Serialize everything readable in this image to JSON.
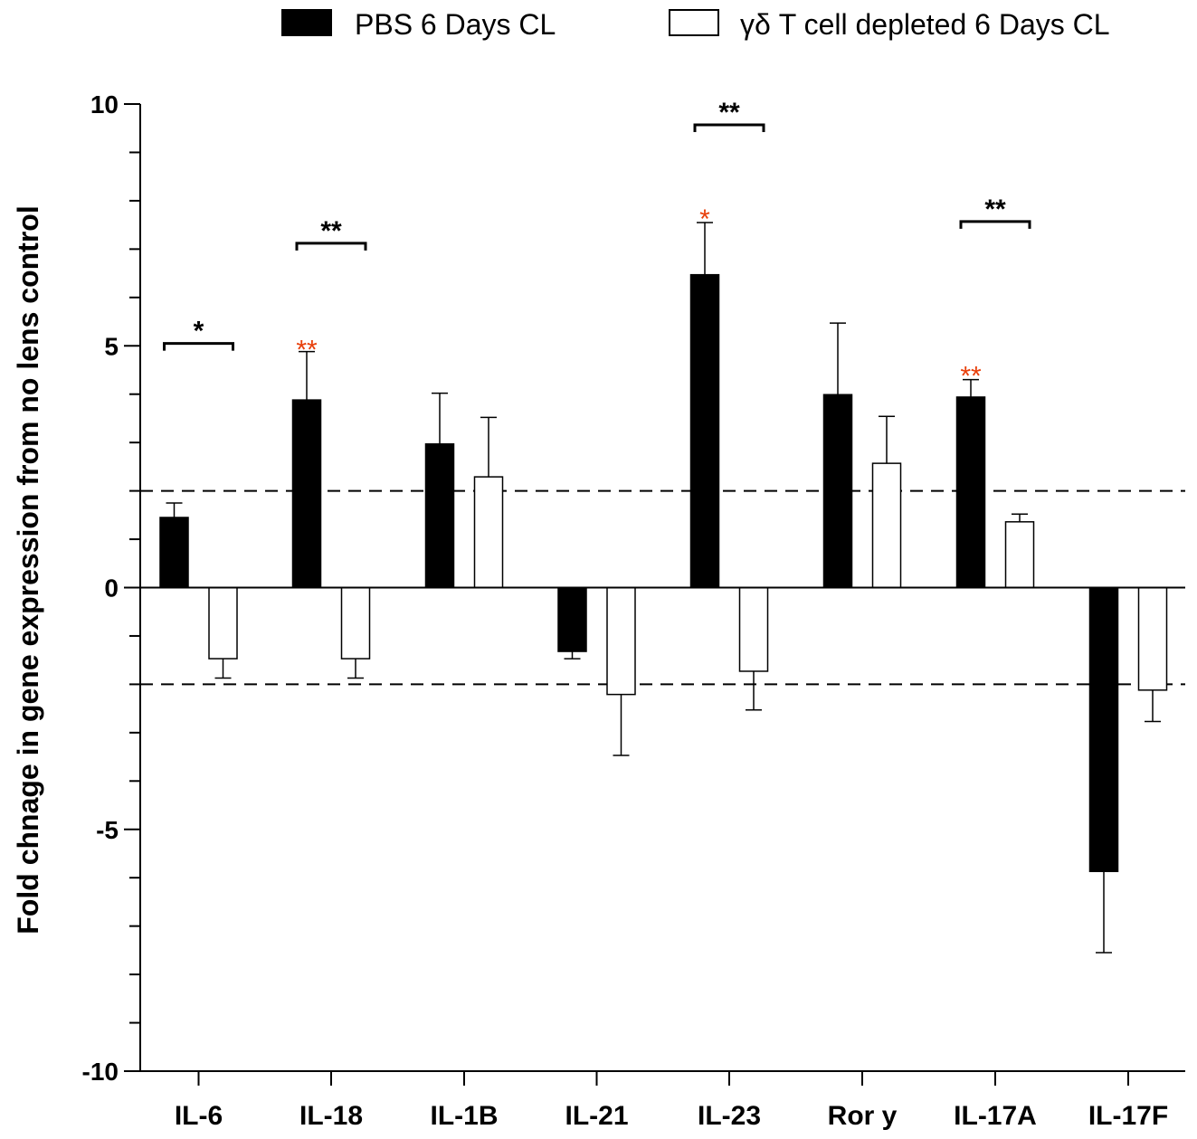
{
  "chart_data": {
    "type": "bar",
    "title": "",
    "xlabel": "",
    "ylabel": "Fold chnage in gene expression from no lens control",
    "ylim": [
      -10,
      10
    ],
    "yticks": [
      10,
      5,
      0,
      -5,
      -10
    ],
    "tick_labels": [
      "10",
      "5",
      "0",
      "-5",
      "-10"
    ],
    "categories": [
      "IL-6",
      "IL-18",
      "IL-1B",
      "IL-21",
      "IL-23",
      "Ror y",
      "IL-17A",
      "IL-17F"
    ],
    "series": [
      {
        "name": "PBS 6 Days CL",
        "fill": "#000000",
        "values": [
          1.45,
          3.88,
          2.97,
          -1.32,
          6.47,
          3.99,
          3.94,
          -5.87
        ],
        "errors": [
          0.3,
          1.0,
          1.05,
          0.15,
          1.08,
          1.48,
          0.36,
          1.68
        ]
      },
      {
        "name": "γδ T cell depleted 6 Days CL",
        "fill": "#ffffff",
        "values": [
          -1.47,
          -1.47,
          2.29,
          -2.21,
          -1.73,
          2.57,
          1.36,
          -2.12
        ],
        "errors": [
          0.4,
          0.4,
          1.23,
          1.26,
          0.8,
          0.97,
          0.16,
          0.65
        ]
      }
    ],
    "reference_lines": [
      2,
      -2
    ],
    "significance": [
      {
        "category": 0,
        "bracket": true,
        "label": "*",
        "color": "#000000",
        "y": 5.05
      },
      {
        "category": 1,
        "bracket": true,
        "label": "**",
        "color": "#000000",
        "y": 7.12
      },
      {
        "category": 4,
        "bracket": true,
        "label": "**",
        "color": "#000000",
        "y": 9.57
      },
      {
        "category": 6,
        "bracket": true,
        "label": "**",
        "color": "#000000",
        "y": 7.57
      },
      {
        "category": 1,
        "bracket": false,
        "label": "**",
        "color": "#e8400c",
        "y": 5.0
      },
      {
        "category": 4,
        "bracket": false,
        "label": "*",
        "color": "#e8400c",
        "y": 7.7
      },
      {
        "category": 6,
        "bracket": false,
        "label": "**",
        "color": "#e8400c",
        "y": 4.45
      }
    ],
    "legend_position": "top"
  }
}
